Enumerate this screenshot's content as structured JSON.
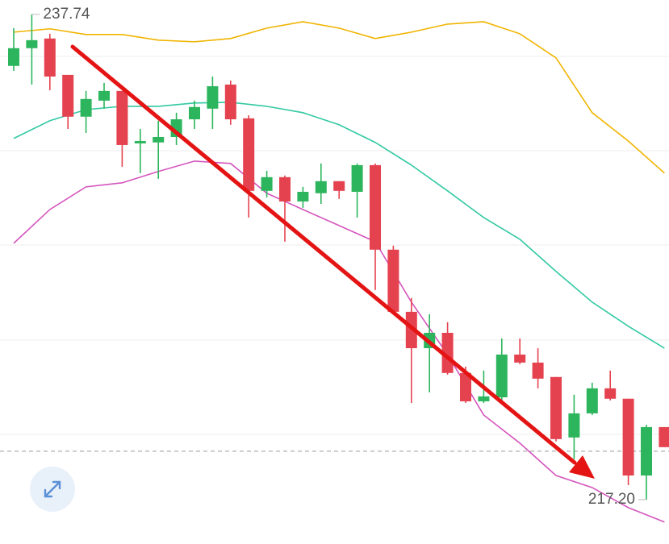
{
  "chart_data": {
    "type": "candlestick",
    "ylim": [
      215.32,
      238.35
    ],
    "up_color": "#2db55d",
    "down_color": "#e5424f",
    "open": [
      235.56,
      236.31,
      236.72,
      235.18,
      233.41,
      234.09,
      234.5,
      232.28,
      232.32,
      232.55,
      233.3,
      233.75,
      234.77,
      233.34,
      230.27,
      230.85,
      229.82,
      230.17,
      230.68,
      230.23,
      231.36,
      227.78,
      225.15,
      223.61,
      224.26,
      222.56,
      221.36,
      221.53,
      223.34,
      223.0,
      222.39,
      219.83,
      220.85,
      221.91,
      221.47,
      218.22,
      220.27
    ],
    "high": [
      237.16,
      237.74,
      236.92,
      235.18,
      234.5,
      234.84,
      234.5,
      232.89,
      233.24,
      233.58,
      234.09,
      235.11,
      234.94,
      233.47,
      231.12,
      230.92,
      230.44,
      231.43,
      230.68,
      231.43,
      231.43,
      227.95,
      225.73,
      225.05,
      224.71,
      222.83,
      222.66,
      224.02,
      224.02,
      223.61,
      222.39,
      221.64,
      222.15,
      222.66,
      221.47,
      220.37,
      220.27
    ],
    "low": [
      235.35,
      234.77,
      234.53,
      232.89,
      232.72,
      233.75,
      231.29,
      231.02,
      230.78,
      232.21,
      232.89,
      232.89,
      233.07,
      229.14,
      229.99,
      228.12,
      229.55,
      229.72,
      229.93,
      229.14,
      226.07,
      225.05,
      221.29,
      221.74,
      222.49,
      221.29,
      221.29,
      221.36,
      222.93,
      221.91,
      219.66,
      218.91,
      220.78,
      221.4,
      217.81,
      217.2,
      219.42
    ],
    "close": [
      236.31,
      236.65,
      235.11,
      233.41,
      234.16,
      234.5,
      232.21,
      232.38,
      232.55,
      233.3,
      233.82,
      234.7,
      233.3,
      230.27,
      230.85,
      229.82,
      230.23,
      230.68,
      230.27,
      231.36,
      227.78,
      225.15,
      223.61,
      224.26,
      222.56,
      221.36,
      221.57,
      223.34,
      223.0,
      222.32,
      219.76,
      220.85,
      221.91,
      221.47,
      218.22,
      220.27,
      219.42
    ],
    "bands": [
      {
        "color": "#f0b400",
        "x": [
          0,
          2,
          4,
          6,
          8,
          10,
          12,
          14,
          16,
          18,
          20,
          22,
          24,
          26,
          28,
          30,
          32,
          34,
          36
        ],
        "values": [
          236.99,
          237.13,
          236.89,
          236.89,
          236.65,
          236.58,
          236.72,
          237.16,
          237.43,
          237.16,
          236.72,
          236.99,
          237.33,
          237.43,
          236.92,
          235.9,
          233.58,
          232.38,
          231.02
        ]
      },
      {
        "color": "#33c9a3",
        "x": [
          0,
          2,
          4,
          6,
          8,
          10,
          12,
          14,
          16,
          18,
          20,
          22,
          24,
          26,
          28,
          30,
          32,
          34,
          36
        ],
        "values": [
          232.49,
          233.24,
          233.71,
          233.85,
          233.85,
          233.99,
          234.02,
          233.85,
          233.58,
          233.07,
          232.32,
          231.36,
          230.27,
          229.14,
          228.22,
          226.86,
          225.56,
          224.54,
          223.61
        ]
      },
      {
        "color": "#d455bd",
        "x": [
          0,
          2,
          4,
          6,
          8,
          10,
          12,
          14,
          16,
          18,
          20,
          22,
          24,
          26,
          28,
          30,
          32,
          34,
          36
        ],
        "values": [
          228.05,
          229.48,
          230.44,
          230.61,
          231.09,
          231.53,
          231.43,
          230.17,
          229.48,
          228.8,
          228.12,
          225.56,
          223.34,
          220.78,
          219.59,
          218.22,
          217.71,
          216.86,
          216.25
        ]
      }
    ],
    "reference_line": 219.25,
    "max_label": {
      "value": 237.74,
      "label": "237.74",
      "index": 1
    },
    "min_label": {
      "value": 217.2,
      "label": "217.20",
      "index": 35
    }
  }
}
